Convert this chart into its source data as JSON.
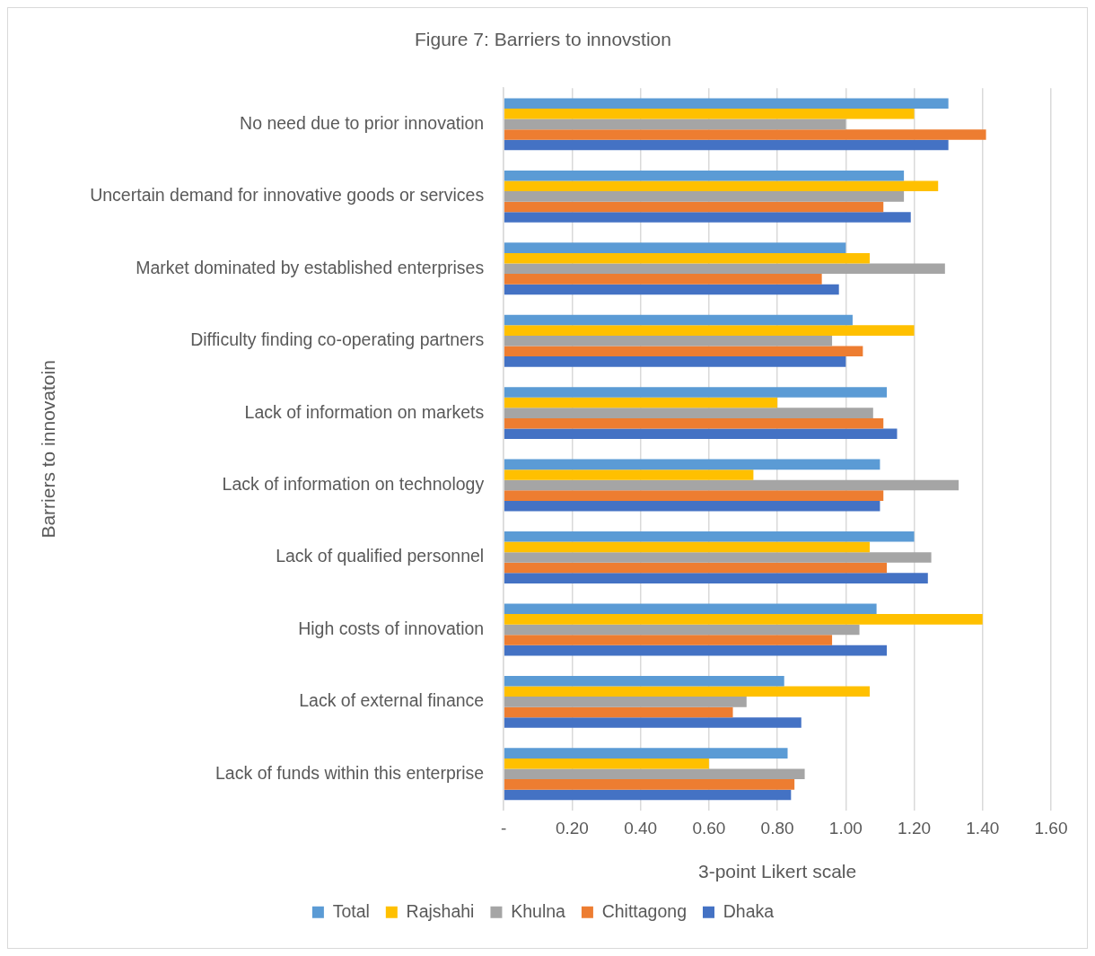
{
  "chart_data": {
    "type": "bar",
    "orientation": "horizontal",
    "title": "Figure 7: Barriers to innovstion",
    "xlabel": "3-point Likert scale",
    "ylabel": "Barriers to innovatoin",
    "categories": [
      "No need due to prior innovation",
      "Uncertain demand for innovative goods or services",
      "Market dominated by established enterprises",
      "Difficulty finding co-operating partners",
      "Lack of information on markets",
      "Lack of information on technology",
      "Lack of qualified personnel",
      "High costs of innovation",
      "Lack of external finance",
      "Lack of funds within this enterprise"
    ],
    "series": [
      {
        "name": "Total",
        "color": "#5b9bd5",
        "values": [
          1.3,
          1.17,
          1.0,
          1.02,
          1.12,
          1.1,
          1.2,
          1.09,
          0.82,
          0.83
        ]
      },
      {
        "name": "Rajshahi",
        "color": "#ffc000",
        "values": [
          1.2,
          1.27,
          1.07,
          1.2,
          0.8,
          0.73,
          1.07,
          1.4,
          1.07,
          0.6
        ]
      },
      {
        "name": "Khulna",
        "color": "#a5a5a5",
        "values": [
          1.0,
          1.17,
          1.29,
          0.96,
          1.08,
          1.33,
          1.25,
          1.04,
          0.71,
          0.88
        ]
      },
      {
        "name": "Chittagong",
        "color": "#ed7d31",
        "values": [
          1.41,
          1.11,
          0.93,
          1.05,
          1.11,
          1.11,
          1.12,
          0.96,
          0.67,
          0.85
        ]
      },
      {
        "name": "Dhaka",
        "color": "#4472c4",
        "values": [
          1.3,
          1.19,
          0.98,
          1.0,
          1.15,
          1.1,
          1.24,
          1.12,
          0.87,
          0.84
        ]
      }
    ],
    "xlim": [
      0,
      1.6
    ],
    "xticks": [
      {
        "value": 0,
        "label": "-"
      },
      {
        "value": 0.2,
        "label": "0.20"
      },
      {
        "value": 0.4,
        "label": "0.40"
      },
      {
        "value": 0.6,
        "label": "0.60"
      },
      {
        "value": 0.8,
        "label": "0.80"
      },
      {
        "value": 1,
        "label": "1.00"
      },
      {
        "value": 1.2,
        "label": "1.20"
      },
      {
        "value": 1.4,
        "label": "1.40"
      },
      {
        "value": 1.6,
        "label": "1.60"
      }
    ],
    "grid": "x",
    "legend": "bottom"
  }
}
